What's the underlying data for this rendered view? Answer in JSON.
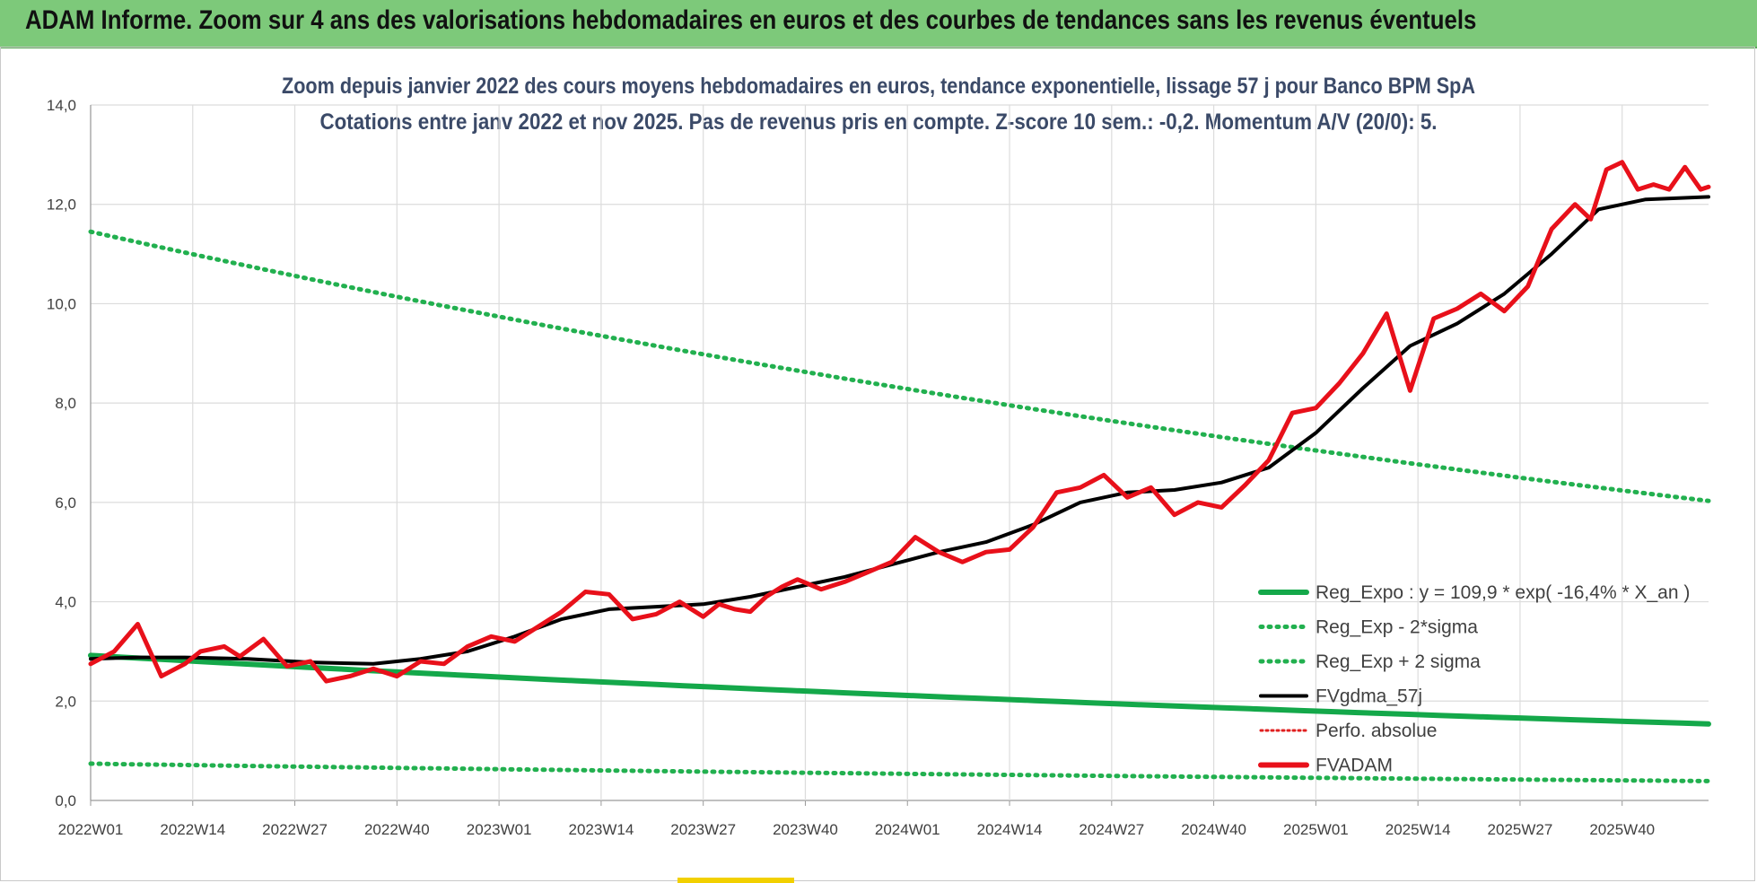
{
  "header": {
    "title": "ADAM Informe. Zoom sur 4 ans des valorisations hebdomadaires en euros et des courbes de tendances sans les revenus éventuels"
  },
  "colors": {
    "header_bg": "#7dc97a",
    "regression": "#14a84a",
    "dotted_bands": "#22b04f",
    "fvgdma": "#000000",
    "fvadam": "#e8101a",
    "perfo": "#e02020",
    "grid": "#dcdcdc"
  },
  "chart_data": {
    "type": "line",
    "title_line1": "Zoom depuis janvier 2022 des cours moyens hebdomadaires en euros, tendance exponentielle, lissage 57 j pour Banco BPM SpA",
    "title_line2": "Cotations entre janv 2022 et nov 2025. Pas de revenus pris en compte. Z-score 10 sem.: -0,2. Momentum A/V (20/0): 5.",
    "x_tick_labels": [
      "2022W01",
      "2022W14",
      "2022W27",
      "2022W40",
      "2023W01",
      "2023W14",
      "2023W27",
      "2023W40",
      "2024W01",
      "2024W14",
      "2024W27",
      "2024W40",
      "2025W01",
      "2025W14",
      "2025W27",
      "2025W40"
    ],
    "y_tick_labels": [
      "0,0",
      "2,0",
      "4,0",
      "6,0",
      "8,0",
      "10,0",
      "12,0",
      "14,0"
    ],
    "ylim": [
      0,
      14
    ],
    "xlim_weeks": [
      0,
      206
    ],
    "grid": true,
    "legend_position": "bottom-right",
    "legend": [
      {
        "key": "reg_expo",
        "label": "Reg_Expo : y = 109,9 * exp( -16,4% *  X_an )",
        "style": "solid",
        "color": "#14a84a"
      },
      {
        "key": "reg_minus",
        "label": "Reg_Exp - 2*sigma",
        "style": "dotted",
        "color": "#22b04f"
      },
      {
        "key": "reg_plus",
        "label": "Reg_Exp + 2 sigma",
        "style": "dotted",
        "color": "#22b04f"
      },
      {
        "key": "fvgdma",
        "label": "FVgdma_57j",
        "style": "solid",
        "color": "#000000"
      },
      {
        "key": "perfo",
        "label": "Perfo. absolue",
        "style": "dotted",
        "color": "#e02020"
      },
      {
        "key": "fvadam",
        "label": "FVADAM",
        "style": "solid",
        "color": "#e8101a"
      }
    ],
    "series": [
      {
        "key": "fvadam",
        "name": "FVADAM",
        "x": [
          0,
          3,
          6,
          9,
          12,
          14,
          17,
          19,
          22,
          25,
          28,
          30,
          33,
          36,
          39,
          42,
          45,
          48,
          51,
          54,
          57,
          60,
          63,
          66,
          69,
          72,
          75,
          78,
          80,
          82,
          84,
          86,
          88,
          90,
          93,
          96,
          99,
          102,
          105,
          108,
          111,
          114,
          117,
          120,
          123,
          126,
          129,
          132,
          135,
          138,
          141,
          144,
          147,
          150,
          153,
          156,
          159,
          162,
          165,
          168,
          171,
          174,
          177,
          180,
          183,
          186,
          189,
          191,
          193,
          195,
          197,
          199,
          201,
          203,
          205,
          206
        ],
        "y": [
          2.75,
          3.0,
          3.55,
          2.5,
          2.75,
          3.0,
          3.1,
          2.9,
          3.25,
          2.7,
          2.8,
          2.4,
          2.5,
          2.65,
          2.5,
          2.8,
          2.75,
          3.1,
          3.3,
          3.2,
          3.5,
          3.8,
          4.2,
          4.15,
          3.65,
          3.75,
          4.0,
          3.7,
          3.95,
          3.85,
          3.8,
          4.1,
          4.3,
          4.45,
          4.25,
          4.4,
          4.6,
          4.8,
          5.3,
          5.0,
          4.8,
          5.0,
          5.05,
          5.5,
          6.2,
          6.3,
          6.55,
          6.1,
          6.3,
          5.75,
          6.0,
          5.9,
          6.35,
          6.85,
          7.8,
          7.9,
          8.4,
          9.0,
          9.8,
          8.25,
          9.7,
          9.9,
          10.2,
          9.85,
          10.35,
          11.5,
          12.0,
          11.7,
          12.7,
          12.85,
          12.3,
          12.4,
          12.3,
          12.75,
          12.3,
          12.35
        ]
      },
      {
        "key": "fvgdma",
        "name": "FVgdma_57j",
        "x": [
          0,
          6,
          12,
          20,
          28,
          36,
          42,
          48,
          54,
          60,
          66,
          72,
          78,
          84,
          90,
          96,
          102,
          108,
          114,
          120,
          126,
          132,
          138,
          144,
          150,
          156,
          162,
          168,
          174,
          180,
          186,
          192,
          198,
          206
        ],
        "y": [
          2.85,
          2.88,
          2.88,
          2.85,
          2.78,
          2.75,
          2.85,
          3.0,
          3.3,
          3.65,
          3.85,
          3.9,
          3.95,
          4.1,
          4.3,
          4.5,
          4.75,
          5.0,
          5.2,
          5.55,
          6.0,
          6.2,
          6.25,
          6.4,
          6.7,
          7.4,
          8.3,
          9.15,
          9.6,
          10.2,
          11.0,
          11.9,
          12.1,
          12.15
        ]
      },
      {
        "key": "reg_expo",
        "name": "Reg_Expo : y = 109,9 * exp( -16,4% *  X_an )",
        "curve": "exponential",
        "start": 2.92,
        "end": 1.54
      },
      {
        "key": "reg_plus",
        "name": "Reg_Exp + 2 sigma",
        "curve": "exponential",
        "start": 11.45,
        "end": 6.03
      },
      {
        "key": "reg_minus",
        "name": "Reg_Exp - 2*sigma",
        "curve": "exponential",
        "start": 0.74,
        "end": 0.39
      }
    ]
  }
}
